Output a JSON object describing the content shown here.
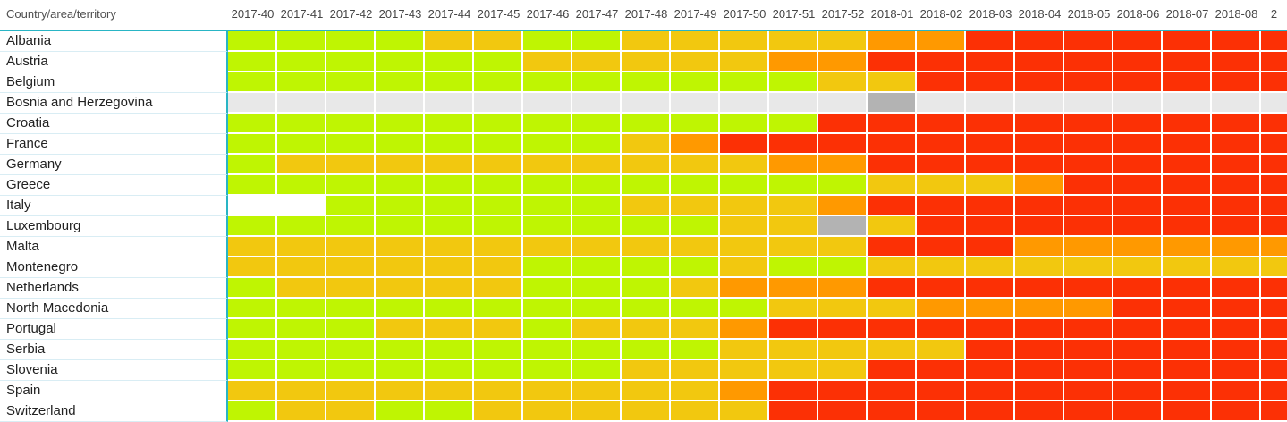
{
  "header": {
    "row_dimension_label": "Country/area/territory"
  },
  "palette": {
    "G": "#BFF502",
    "Y": "#F2C80F",
    "O": "#FF9900",
    "R": "#FC3005",
    "L": "#E8E8E8",
    "D": "#B3B3B3",
    "W": "#FFFFFF",
    "accent_teal": "#29B5C5",
    "label_row_separator": "#D9EDF4",
    "header_text": "#464646",
    "row_label_text": "#222222"
  },
  "chart_data": {
    "type": "heatmap",
    "title": "",
    "x_axis_label": "",
    "y_axis_label": "Country/area/territory",
    "grid": true,
    "legend_position": "none",
    "color_levels": {
      "G": "green",
      "Y": "yellow",
      "O": "orange",
      "R": "red",
      "L": "light-gray-no-data",
      "D": "dark-gray",
      "W": "blank-white"
    },
    "columns": [
      "2017-40",
      "2017-41",
      "2017-42",
      "2017-43",
      "2017-44",
      "2017-45",
      "2017-46",
      "2017-47",
      "2017-48",
      "2017-49",
      "2017-50",
      "2017-51",
      "2017-52",
      "2018-01",
      "2018-02",
      "2018-03",
      "2018-04",
      "2018-05",
      "2018-06",
      "2018-07",
      "2018-08",
      "2"
    ],
    "rows": [
      {
        "label": "Albania",
        "cells": [
          "G",
          "G",
          "G",
          "G",
          "Y",
          "Y",
          "G",
          "G",
          "Y",
          "Y",
          "Y",
          "Y",
          "Y",
          "O",
          "O",
          "R",
          "R",
          "R",
          "R",
          "R",
          "R",
          "R"
        ]
      },
      {
        "label": "Austria",
        "cells": [
          "G",
          "G",
          "G",
          "G",
          "G",
          "G",
          "Y",
          "Y",
          "Y",
          "Y",
          "Y",
          "O",
          "O",
          "R",
          "R",
          "R",
          "R",
          "R",
          "R",
          "R",
          "R",
          "R"
        ]
      },
      {
        "label": "Belgium",
        "cells": [
          "G",
          "G",
          "G",
          "G",
          "G",
          "G",
          "G",
          "G",
          "G",
          "G",
          "G",
          "G",
          "Y",
          "Y",
          "R",
          "R",
          "R",
          "R",
          "R",
          "R",
          "R",
          "R"
        ]
      },
      {
        "label": "Bosnia and Herzegovina",
        "cells": [
          "L",
          "L",
          "L",
          "L",
          "L",
          "L",
          "L",
          "L",
          "L",
          "L",
          "L",
          "L",
          "L",
          "D",
          "L",
          "L",
          "L",
          "L",
          "L",
          "L",
          "L",
          "L"
        ]
      },
      {
        "label": "Croatia",
        "cells": [
          "G",
          "G",
          "G",
          "G",
          "G",
          "G",
          "G",
          "G",
          "G",
          "G",
          "G",
          "G",
          "R",
          "R",
          "R",
          "R",
          "R",
          "R",
          "R",
          "R",
          "R",
          "R"
        ]
      },
      {
        "label": "France",
        "cells": [
          "G",
          "G",
          "G",
          "G",
          "G",
          "G",
          "G",
          "G",
          "Y",
          "O",
          "R",
          "R",
          "R",
          "R",
          "R",
          "R",
          "R",
          "R",
          "R",
          "R",
          "R",
          "R"
        ]
      },
      {
        "label": "Germany",
        "cells": [
          "G",
          "Y",
          "Y",
          "Y",
          "Y",
          "Y",
          "Y",
          "Y",
          "Y",
          "Y",
          "Y",
          "O",
          "O",
          "R",
          "R",
          "R",
          "R",
          "R",
          "R",
          "R",
          "R",
          "R"
        ]
      },
      {
        "label": "Greece",
        "cells": [
          "G",
          "G",
          "G",
          "G",
          "G",
          "G",
          "G",
          "G",
          "G",
          "G",
          "G",
          "G",
          "G",
          "Y",
          "Y",
          "Y",
          "O",
          "R",
          "R",
          "R",
          "R",
          "R"
        ]
      },
      {
        "label": "Italy",
        "cells": [
          "W",
          "W",
          "G",
          "G",
          "G",
          "G",
          "G",
          "G",
          "Y",
          "Y",
          "Y",
          "Y",
          "O",
          "R",
          "R",
          "R",
          "R",
          "R",
          "R",
          "R",
          "R",
          "R"
        ]
      },
      {
        "label": "Luxembourg",
        "cells": [
          "G",
          "G",
          "G",
          "G",
          "G",
          "G",
          "G",
          "G",
          "G",
          "G",
          "Y",
          "Y",
          "D",
          "Y",
          "R",
          "R",
          "R",
          "R",
          "R",
          "R",
          "R",
          "R"
        ]
      },
      {
        "label": "Malta",
        "cells": [
          "Y",
          "Y",
          "Y",
          "Y",
          "Y",
          "Y",
          "Y",
          "Y",
          "Y",
          "Y",
          "Y",
          "Y",
          "Y",
          "R",
          "R",
          "R",
          "O",
          "O",
          "O",
          "O",
          "O",
          "O"
        ]
      },
      {
        "label": "Montenegro",
        "cells": [
          "Y",
          "Y",
          "Y",
          "Y",
          "Y",
          "Y",
          "G",
          "G",
          "G",
          "G",
          "Y",
          "G",
          "G",
          "Y",
          "Y",
          "Y",
          "Y",
          "Y",
          "Y",
          "Y",
          "Y",
          "Y"
        ]
      },
      {
        "label": "Netherlands",
        "cells": [
          "G",
          "Y",
          "Y",
          "Y",
          "Y",
          "Y",
          "G",
          "G",
          "G",
          "Y",
          "O",
          "O",
          "O",
          "R",
          "R",
          "R",
          "R",
          "R",
          "R",
          "R",
          "R",
          "R"
        ]
      },
      {
        "label": "North Macedonia",
        "cells": [
          "G",
          "G",
          "G",
          "G",
          "G",
          "G",
          "G",
          "G",
          "G",
          "G",
          "G",
          "Y",
          "Y",
          "Y",
          "O",
          "O",
          "O",
          "O",
          "R",
          "R",
          "R",
          "R"
        ]
      },
      {
        "label": "Portugal",
        "cells": [
          "G",
          "G",
          "G",
          "Y",
          "Y",
          "Y",
          "G",
          "Y",
          "Y",
          "Y",
          "O",
          "R",
          "R",
          "R",
          "R",
          "R",
          "R",
          "R",
          "R",
          "R",
          "R",
          "R"
        ]
      },
      {
        "label": "Serbia",
        "cells": [
          "G",
          "G",
          "G",
          "G",
          "G",
          "G",
          "G",
          "G",
          "G",
          "G",
          "Y",
          "Y",
          "Y",
          "Y",
          "Y",
          "R",
          "R",
          "R",
          "R",
          "R",
          "R",
          "R"
        ]
      },
      {
        "label": "Slovenia",
        "cells": [
          "G",
          "G",
          "G",
          "G",
          "G",
          "G",
          "G",
          "G",
          "Y",
          "Y",
          "Y",
          "Y",
          "Y",
          "R",
          "R",
          "R",
          "R",
          "R",
          "R",
          "R",
          "R",
          "R"
        ]
      },
      {
        "label": "Spain",
        "cells": [
          "Y",
          "Y",
          "Y",
          "Y",
          "Y",
          "Y",
          "Y",
          "Y",
          "Y",
          "Y",
          "O",
          "R",
          "R",
          "R",
          "R",
          "R",
          "R",
          "R",
          "R",
          "R",
          "R",
          "R"
        ]
      },
      {
        "label": "Switzerland",
        "cells": [
          "G",
          "Y",
          "Y",
          "G",
          "G",
          "Y",
          "Y",
          "Y",
          "Y",
          "Y",
          "Y",
          "R",
          "R",
          "R",
          "R",
          "R",
          "R",
          "R",
          "R",
          "R",
          "R",
          "R"
        ]
      }
    ]
  }
}
